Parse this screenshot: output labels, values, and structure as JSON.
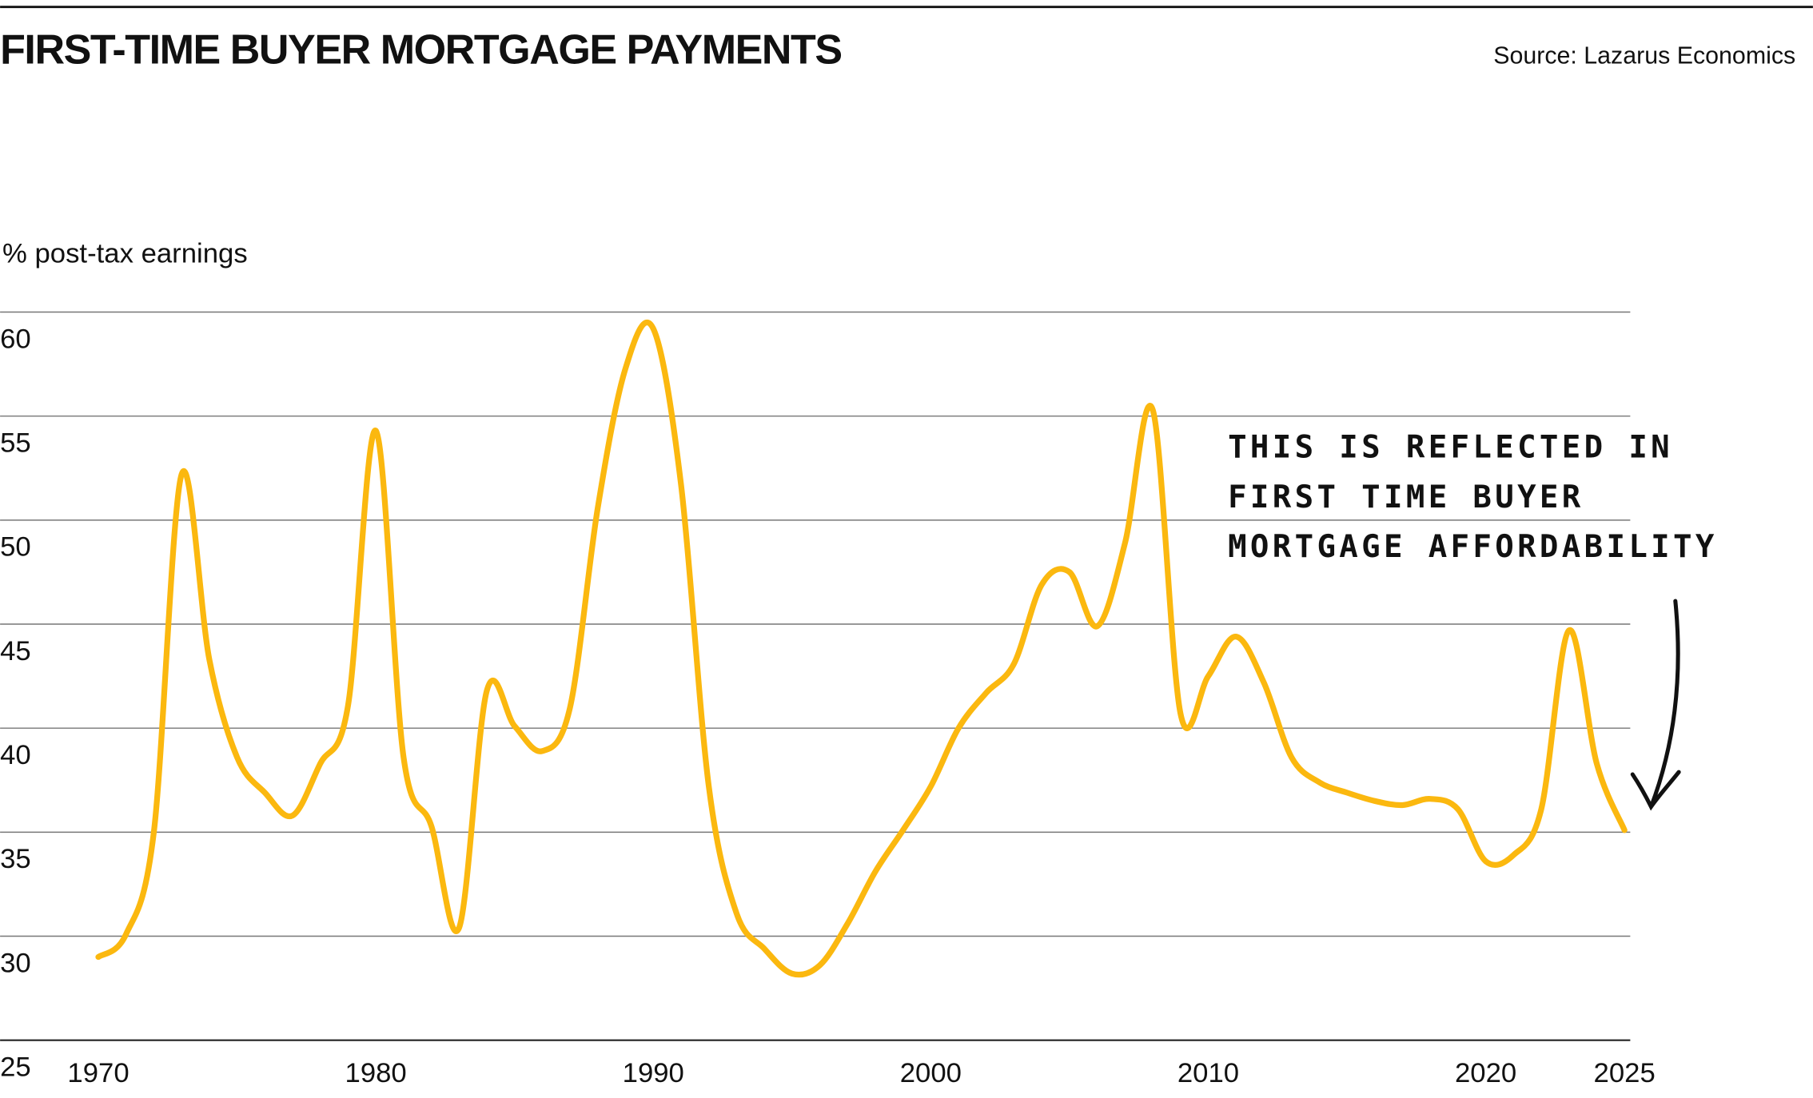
{
  "chart_data": {
    "type": "line",
    "title": "FIRST-TIME BUYER MORTGAGE PAYMENTS",
    "source": "Source: Lazarus Economics",
    "y_label": "% post-tax earnings",
    "annotation": [
      "THIS IS REFLECTED IN",
      "FIRST TIME BUYER",
      "MORTGAGE AFFORDABILITY"
    ],
    "x": [
      1970,
      1971,
      1972,
      1973,
      1974,
      1975,
      1976,
      1977,
      1978,
      1979,
      1980,
      1981,
      1982,
      1983,
      1984,
      1985,
      1986,
      1987,
      1988,
      1989,
      1990,
      1991,
      1992,
      1993,
      1994,
      1995,
      1996,
      1997,
      1998,
      1999,
      2000,
      2001,
      2002,
      2003,
      2004,
      2005,
      2006,
      2007,
      2008,
      2009,
      2010,
      2011,
      2012,
      2013,
      2014,
      2015,
      2016,
      2017,
      2018,
      2019,
      2020,
      2021,
      2022,
      2023,
      2024,
      2025
    ],
    "series": [
      {
        "name": "Mortgage payments",
        "color": "#fbb80f",
        "values": [
          29,
          30.1,
          35,
          52.2,
          43.3,
          38.6,
          36.9,
          35.8,
          38.3,
          41.1,
          54.3,
          38.6,
          35.3,
          30.4,
          41.8,
          40.1,
          38.9,
          41,
          50.6,
          57.3,
          59.2,
          51.7,
          37.2,
          31.1,
          29.4,
          28.2,
          28.6,
          30.6,
          33.1,
          35.1,
          37.2,
          40,
          41.7,
          43.1,
          46.9,
          47.5,
          44.9,
          48.9,
          55.3,
          40.7,
          42.5,
          44.4,
          42.2,
          38.6,
          37.4,
          36.9,
          36.5,
          36.3,
          36.6,
          36.1,
          33.6,
          33.9,
          36.1,
          44.7,
          38.3,
          35.1
        ]
      }
    ],
    "xlim": [
      1970,
      2025
    ],
    "xticks": [
      1970,
      1980,
      1990,
      2000,
      2010,
      2020,
      2025
    ],
    "ylim": [
      25,
      60
    ],
    "yticks": [
      25,
      30,
      35,
      40,
      45,
      50,
      55,
      60
    ],
    "grid": true
  }
}
